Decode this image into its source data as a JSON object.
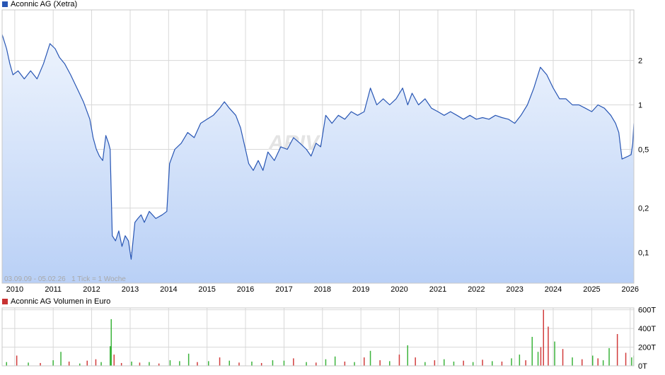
{
  "colors": {
    "price_line": "#2856b4",
    "area_top": "#eef4fd",
    "area_bottom": "#b9d0f6",
    "grid": "#d8d8d8",
    "volume_up": "#3cb43c",
    "volume_down": "#d23c3c",
    "volume_legend": "#c83232",
    "watermark": "#e4e4e4"
  },
  "price_panel": {
    "legend_label": "Aconnic AG (Xetra)",
    "info_text": "03.09.09 - 05.02.26   1 Tick = 1 Woche",
    "watermark": "ARIVA.DE"
  },
  "volume_panel": {
    "legend_label": "Aconnic AG Volumen in Euro"
  },
  "chart_data": [
    {
      "type": "line",
      "title": "Aconnic AG (Xetra)",
      "y_scale": "log",
      "ylim": [
        0.062,
        4.4
      ],
      "xlim": [
        "2009-09-03",
        "2026-02-05"
      ],
      "y_ticks": [
        {
          "value": 0.1,
          "label": "0,1"
        },
        {
          "value": 0.2,
          "label": "0,2"
        },
        {
          "value": 0.5,
          "label": "0,5"
        },
        {
          "value": 1,
          "label": "1"
        },
        {
          "value": 2,
          "label": "2"
        }
      ],
      "x_ticks": [
        "2010",
        "2011",
        "2012",
        "2013",
        "2014",
        "2015",
        "2016",
        "2017",
        "2018",
        "2019",
        "2020",
        "2021",
        "2022",
        "2023",
        "2024",
        "2025",
        "2026"
      ],
      "grid": true,
      "series": [
        {
          "x": [
            "2009-09-03",
            "2009-10-15",
            "2009-11-15",
            "2009-12-15",
            "2010-02-01",
            "2010-04-01",
            "2010-06-01",
            "2010-08-01",
            "2010-10-01",
            "2010-12-01",
            "2011-01-20",
            "2011-03-01",
            "2011-04-20",
            "2011-06-15",
            "2011-08-15",
            "2011-10-15",
            "2011-12-15",
            "2012-01-15",
            "2012-02-15",
            "2012-03-15",
            "2012-04-15",
            "2012-05-15",
            "2012-06-10",
            "2012-06-25",
            "2012-07-15",
            "2012-08-15",
            "2012-09-15",
            "2012-10-15",
            "2012-11-15",
            "2012-12-15",
            "2013-01-10",
            "2013-02-15",
            "2013-03-15",
            "2013-04-15",
            "2013-05-15",
            "2013-07-01",
            "2013-09-01",
            "2013-11-01",
            "2013-12-15",
            "2014-01-10",
            "2014-03-01",
            "2014-05-01",
            "2014-07-01",
            "2014-09-01",
            "2014-11-01",
            "2015-01-01",
            "2015-03-01",
            "2015-05-01",
            "2015-06-15",
            "2015-08-01",
            "2015-10-01",
            "2015-11-15",
            "2016-01-01",
            "2016-02-01",
            "2016-03-15",
            "2016-05-01",
            "2016-06-15",
            "2016-08-01",
            "2016-10-01",
            "2016-12-01",
            "2017-02-01",
            "2017-04-01",
            "2017-06-01",
            "2017-08-01",
            "2017-09-15",
            "2017-11-01",
            "2017-12-15",
            "2018-02-01",
            "2018-04-01",
            "2018-06-01",
            "2018-08-01",
            "2018-10-01",
            "2018-12-01",
            "2019-02-01",
            "2019-04-01",
            "2019-06-01",
            "2019-08-01",
            "2019-10-01",
            "2019-12-01",
            "2020-02-01",
            "2020-03-20",
            "2020-05-01",
            "2020-07-01",
            "2020-09-01",
            "2020-11-01",
            "2021-01-01",
            "2021-03-01",
            "2021-05-01",
            "2021-07-01",
            "2021-09-01",
            "2021-11-01",
            "2022-01-01",
            "2022-03-01",
            "2022-05-01",
            "2022-07-01",
            "2022-09-01",
            "2022-11-01",
            "2023-01-01",
            "2023-03-01",
            "2023-05-01",
            "2023-07-01",
            "2023-09-01",
            "2023-11-01",
            "2024-01-01",
            "2024-03-01",
            "2024-05-01",
            "2024-07-01",
            "2024-09-01",
            "2024-11-01",
            "2025-01-01",
            "2025-03-01",
            "2025-05-01",
            "2025-07-01",
            "2025-08-15",
            "2025-09-15",
            "2025-10-15",
            "2025-11-15",
            "2025-12-15",
            "2026-01-10",
            "2026-01-25",
            "2026-02-05"
          ],
          "y": [
            3.0,
            2.4,
            1.9,
            1.6,
            1.7,
            1.5,
            1.7,
            1.5,
            1.9,
            2.6,
            2.4,
            2.1,
            1.9,
            1.6,
            1.3,
            1.05,
            0.8,
            0.6,
            0.5,
            0.45,
            0.42,
            0.62,
            0.55,
            0.5,
            0.13,
            0.12,
            0.14,
            0.11,
            0.13,
            0.12,
            0.09,
            0.16,
            0.17,
            0.18,
            0.16,
            0.19,
            0.17,
            0.18,
            0.19,
            0.4,
            0.5,
            0.55,
            0.65,
            0.6,
            0.75,
            0.8,
            0.85,
            0.95,
            1.05,
            0.95,
            0.85,
            0.7,
            0.5,
            0.4,
            0.36,
            0.42,
            0.36,
            0.48,
            0.42,
            0.52,
            0.5,
            0.6,
            0.55,
            0.5,
            0.45,
            0.55,
            0.52,
            0.85,
            0.75,
            0.85,
            0.8,
            0.9,
            0.85,
            0.9,
            1.3,
            1.0,
            1.1,
            1.0,
            1.1,
            1.3,
            1.0,
            1.2,
            1.0,
            1.1,
            0.95,
            0.9,
            0.85,
            0.9,
            0.85,
            0.8,
            0.85,
            0.8,
            0.82,
            0.8,
            0.85,
            0.82,
            0.8,
            0.75,
            0.85,
            1.0,
            1.3,
            1.8,
            1.6,
            1.3,
            1.1,
            1.1,
            1.0,
            1.0,
            0.95,
            0.9,
            1.0,
            0.95,
            0.85,
            0.75,
            0.65,
            0.43,
            0.44,
            0.45,
            0.46,
            0.55,
            0.75
          ]
        }
      ]
    },
    {
      "type": "bar",
      "title": "Aconnic AG Volumen in Euro",
      "ylim": [
        0,
        620000
      ],
      "y_ticks": [
        {
          "value": 0,
          "label": "0T"
        },
        {
          "value": 200000,
          "label": "200T"
        },
        {
          "value": 400000,
          "label": "400T"
        },
        {
          "value": 600000,
          "label": "600T"
        }
      ],
      "x_ticks": [
        "2010",
        "2011",
        "2012",
        "2013",
        "2014",
        "2015",
        "2016",
        "2017",
        "2018",
        "2019",
        "2020",
        "2021",
        "2022",
        "2023",
        "2024",
        "2025",
        "2026"
      ],
      "grid": true,
      "series": [
        {
          "name": "Volumen",
          "x": [
            "2009-10-15",
            "2010-01-20",
            "2010-05-10",
            "2010-09-01",
            "2011-01-01",
            "2011-03-15",
            "2011-06-01",
            "2011-09-10",
            "2011-11-20",
            "2012-02-10",
            "2012-04-01",
            "2012-06-25",
            "2012-07-05",
            "2012-08-01",
            "2012-10-10",
            "2013-01-15",
            "2013-04-01",
            "2013-07-01",
            "2013-10-01",
            "2014-01-15",
            "2014-04-15",
            "2014-07-10",
            "2014-10-01",
            "2015-01-15",
            "2015-05-01",
            "2015-08-01",
            "2015-11-01",
            "2016-03-01",
            "2016-06-01",
            "2016-09-15",
            "2017-01-01",
            "2017-04-01",
            "2017-08-01",
            "2017-11-01",
            "2018-02-01",
            "2018-05-01",
            "2018-08-01",
            "2018-11-01",
            "2019-02-01",
            "2019-04-01",
            "2019-07-01",
            "2019-10-01",
            "2020-01-01",
            "2020-03-20",
            "2020-06-01",
            "2020-09-01",
            "2020-12-01",
            "2021-03-01",
            "2021-06-01",
            "2021-09-01",
            "2021-12-01",
            "2022-03-01",
            "2022-06-01",
            "2022-09-01",
            "2022-12-01",
            "2023-02-15",
            "2023-04-15",
            "2023-06-15",
            "2023-08-10",
            "2023-09-05",
            "2023-10-01",
            "2023-11-15",
            "2024-01-15",
            "2024-04-01",
            "2024-07-01",
            "2024-10-01",
            "2025-01-10",
            "2025-03-01",
            "2025-04-20",
            "2025-06-15",
            "2025-09-01",
            "2025-11-20",
            "2026-01-15",
            "2026-02-05"
          ],
          "values": [
            40000,
            110000,
            35000,
            30000,
            60000,
            150000,
            45000,
            25000,
            55000,
            70000,
            40000,
            210000,
            500000,
            120000,
            30000,
            45000,
            35000,
            40000,
            25000,
            60000,
            50000,
            130000,
            40000,
            50000,
            90000,
            55000,
            35000,
            45000,
            30000,
            60000,
            55000,
            80000,
            40000,
            35000,
            70000,
            100000,
            45000,
            40000,
            90000,
            160000,
            60000,
            50000,
            120000,
            220000,
            90000,
            40000,
            60000,
            70000,
            45000,
            55000,
            40000,
            65000,
            50000,
            45000,
            80000,
            120000,
            60000,
            310000,
            150000,
            200000,
            600000,
            420000,
            260000,
            180000,
            90000,
            70000,
            110000,
            80000,
            60000,
            190000,
            340000,
            140000,
            90000,
            110000
          ],
          "directions": [
            "up",
            "down",
            "up",
            "down",
            "up",
            "up",
            "down",
            "up",
            "down",
            "down",
            "up",
            "up",
            "up",
            "down",
            "down",
            "up",
            "down",
            "up",
            "down",
            "up",
            "up",
            "up",
            "down",
            "up",
            "down",
            "up",
            "down",
            "up",
            "down",
            "up",
            "up",
            "down",
            "up",
            "down",
            "up",
            "up",
            "down",
            "up",
            "down",
            "up",
            "down",
            "up",
            "down",
            "up",
            "down",
            "up",
            "down",
            "up",
            "up",
            "down",
            "up",
            "down",
            "up",
            "down",
            "up",
            "up",
            "down",
            "up",
            "up",
            "down",
            "down",
            "down",
            "up",
            "down",
            "up",
            "down",
            "up",
            "down",
            "up",
            "up",
            "down",
            "down",
            "up",
            "up"
          ]
        }
      ]
    }
  ]
}
